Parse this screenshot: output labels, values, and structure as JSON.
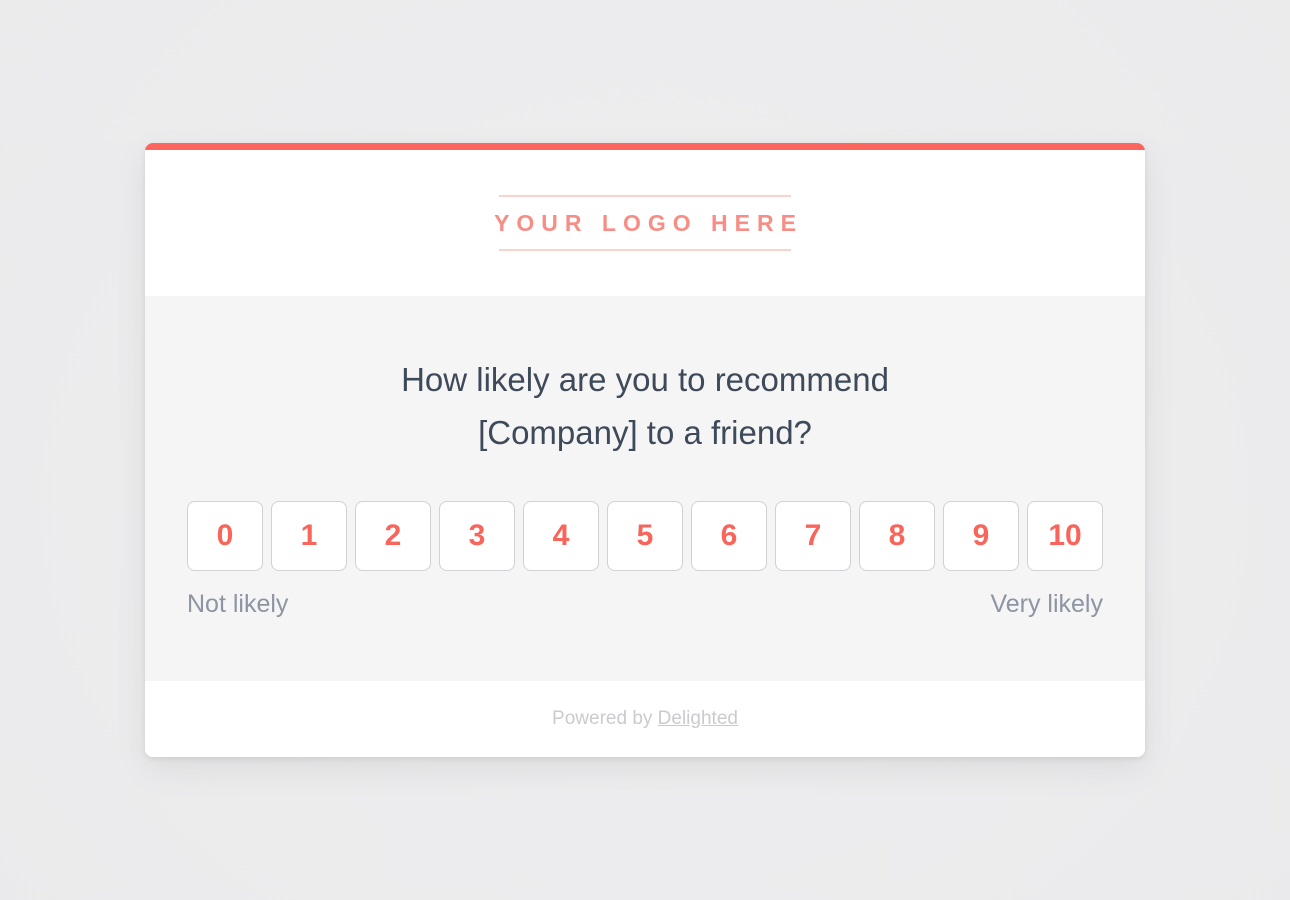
{
  "theme": {
    "accent_color": "#fd665c",
    "number_color": "#f9655b",
    "question_color": "#3e4a59",
    "body_bg": "#f5f5f6",
    "page_bg": "#ececee"
  },
  "header": {
    "logo_text": "YOUR LOGO HERE"
  },
  "survey": {
    "question_line1": "How likely are you to recommend",
    "question_line2": "[Company] to a friend?",
    "scale": [
      "0",
      "1",
      "2",
      "3",
      "4",
      "5",
      "6",
      "7",
      "8",
      "9",
      "10"
    ],
    "low_label": "Not likely",
    "high_label": "Very likely"
  },
  "footer": {
    "powered_by_prefix": "Powered by ",
    "brand": "Delighted"
  }
}
